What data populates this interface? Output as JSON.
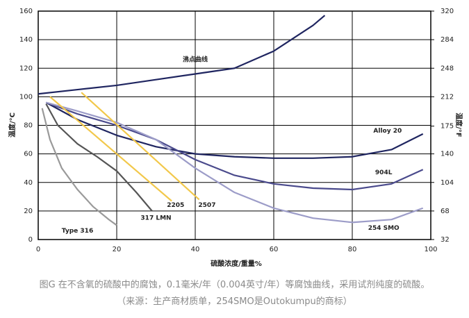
{
  "chart_data": {
    "type": "line",
    "xlabel": "硫酸浓度/重量%",
    "ylabel": "温度/°C",
    "y2label": "温度/°F",
    "xlim": [
      0,
      100
    ],
    "xticks": [
      0,
      20,
      40,
      60,
      80,
      100
    ],
    "ylim": [
      0,
      160
    ],
    "yticks": [
      0,
      20,
      40,
      60,
      80,
      100,
      120,
      140,
      160
    ],
    "y2lim": [
      32,
      320
    ],
    "y2ticks": [
      32,
      68,
      104,
      140,
      175,
      212,
      248,
      284,
      320
    ],
    "grid": true,
    "series": [
      {
        "name": "沸点曲线",
        "color": "#1f2560",
        "x": [
          0,
          10,
          20,
          30,
          40,
          50,
          60,
          70,
          73
        ],
        "values": [
          102,
          105,
          108,
          112,
          116,
          120,
          132,
          150,
          157
        ]
      },
      {
        "name": "Alloy 20",
        "color": "#1f2560",
        "x": [
          2,
          10,
          20,
          30,
          40,
          50,
          60,
          70,
          80,
          90,
          98
        ],
        "values": [
          96,
          84,
          73,
          65,
          60,
          58,
          57,
          57,
          58,
          63,
          74
        ]
      },
      {
        "name": "904L",
        "color": "#4a4a8c",
        "x": [
          3,
          10,
          20,
          30,
          40,
          50,
          60,
          70,
          80,
          90,
          98
        ],
        "values": [
          95,
          88,
          80,
          70,
          56,
          45,
          39,
          36,
          35,
          39,
          49
        ]
      },
      {
        "name": "254 SMO",
        "color": "#9c9cc8",
        "x": [
          2,
          10,
          20,
          30,
          40,
          50,
          60,
          70,
          80,
          90,
          98
        ],
        "values": [
          96,
          90,
          82,
          70,
          50,
          33,
          22,
          15,
          12,
          14,
          22
        ]
      },
      {
        "name": "Type 316",
        "color": "#9a9a9a",
        "x": [
          1,
          3,
          6,
          10,
          14,
          18,
          20
        ],
        "values": [
          92,
          70,
          50,
          35,
          23,
          14,
          10
        ]
      },
      {
        "name": "317 LMN",
        "color": "#555555",
        "x": [
          2,
          5,
          10,
          15,
          20,
          25,
          29
        ],
        "values": [
          95,
          80,
          67,
          58,
          48,
          33,
          20
        ]
      },
      {
        "name": "2205",
        "color": "#f2c84b",
        "x": [
          3,
          34
        ],
        "values": [
          100,
          27
        ]
      },
      {
        "name": "2507",
        "color": "#f2c84b",
        "x": [
          11,
          41
        ],
        "values": [
          103,
          28
        ]
      }
    ],
    "caption": [
      "图G 在不含氧的硫酸中的腐蚀，0.1毫米/年（0.004英寸/年）等腐蚀曲线，采用试剂纯度的硫酸。",
      "（来源：生产商材质单，254SMO是Outokumpu的商标）"
    ]
  }
}
